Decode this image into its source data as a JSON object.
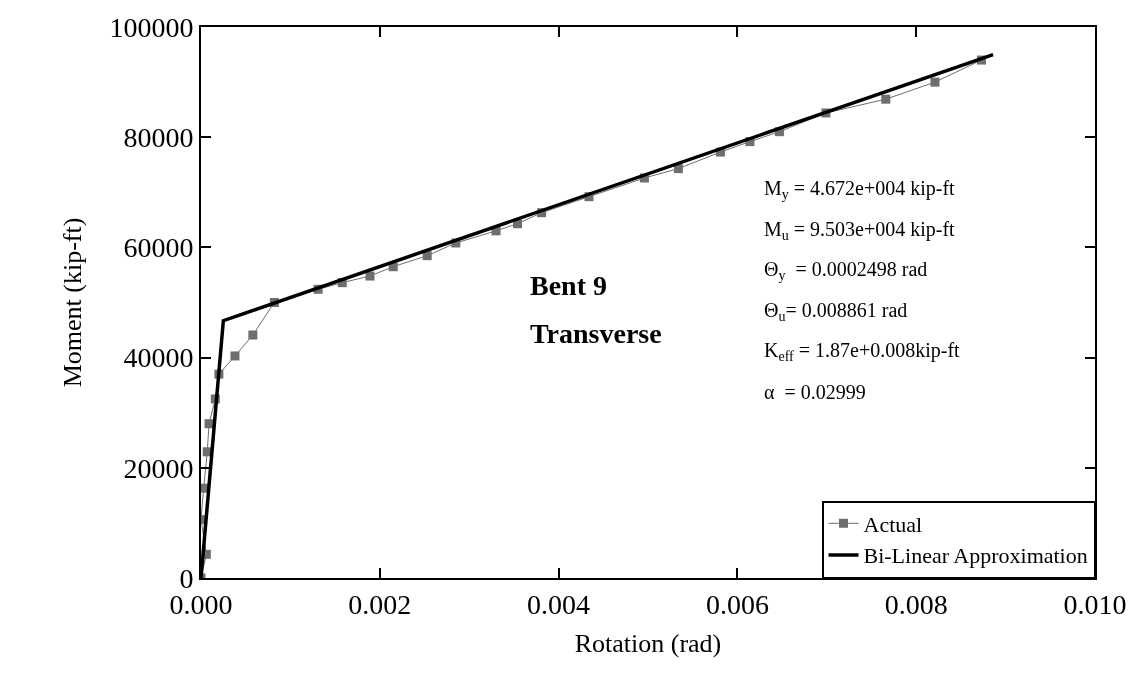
{
  "chart_data": {
    "type": "line",
    "xlabel": "Rotation (rad)",
    "ylabel": "Moment (kip-ft)",
    "xlim": [
      0,
      0.01
    ],
    "xticks": [
      {
        "value": 0,
        "label": "0.000"
      },
      {
        "value": 0.002,
        "label": "0.002"
      },
      {
        "value": 0.004,
        "label": "0.004"
      },
      {
        "value": 0.006,
        "label": "0.006"
      },
      {
        "value": 0.008,
        "label": "0.008"
      },
      {
        "value": 0.01,
        "label": "0.010"
      }
    ],
    "ylim": [
      0,
      100000
    ],
    "yticks": [
      0,
      20000,
      40000,
      60000,
      80000,
      100000
    ],
    "legend": "bottom right",
    "series": [
      {
        "name": "Actual",
        "color": "#6e6e6e",
        "marker": "square",
        "x": [
          0,
          6e-05,
          0,
          3e-05,
          7e-05,
          9e-05,
          0.00016,
          0.0002,
          0.00038,
          0.00058,
          0.00082,
          0.00131,
          0.00158,
          0.00189,
          0.00215,
          0.00253,
          0.00285,
          0.0033,
          0.00354,
          0.00381,
          0.00434,
          0.00496,
          0.00534,
          0.00581,
          0.00614,
          0.00647,
          0.00699,
          0.00766,
          0.00821,
          0.00873
        ],
        "values": [
          0,
          4300,
          10600,
          16300,
          22900,
          28000,
          32500,
          37000,
          40300,
          44100,
          50000,
          52400,
          53600,
          54800,
          56500,
          58500,
          60800,
          63000,
          64300,
          66300,
          69200,
          72600,
          74300,
          77300,
          79200,
          81000,
          84400,
          86900,
          90000,
          94000
        ]
      },
      {
        "name": "Bi-Linear Approximation",
        "color": "#000000",
        "marker": "none",
        "x": [
          0,
          0.00025,
          0.00886
        ],
        "values": [
          0,
          46700,
          95000
        ]
      }
    ],
    "annotations": [
      "Bent 9",
      "Transverse",
      "M$_{y}$ = 4.672e+004 kip-ft",
      "M$_{u}$ = 9.503e+004 kip-ft",
      "Θ$_{y}$  = 0.0002498 rad",
      "Θ$_{u}$= 0.008861 rad",
      "K$_{eff}$ = 1.87e+0.008kip-ft",
      "α  = 0.02999"
    ]
  }
}
